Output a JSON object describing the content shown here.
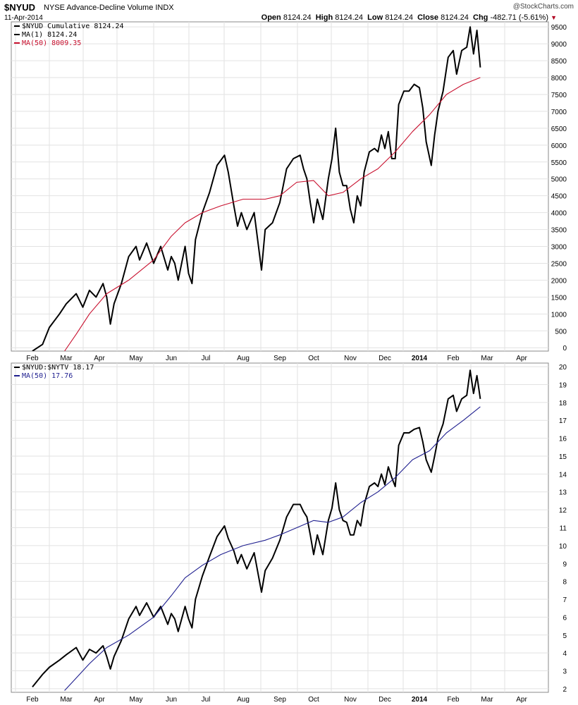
{
  "header": {
    "symbol": "$NYUD",
    "description": "NYSE Advance-Decline Volume INDX",
    "date": "11-Apr-2014",
    "credit": "@StockCharts.com",
    "open_label": "Open",
    "open": "8124.24",
    "high_label": "High",
    "high": "8124.24",
    "low_label": "Low",
    "low": "8124.24",
    "close_label": "Close",
    "close": "8124.24",
    "chg_label": "Chg",
    "chg": "-482.71 (-5.61%)",
    "chg_color": "#b00020"
  },
  "chart_data": [
    {
      "type": "line",
      "panel": "top",
      "x_labels": [
        "Feb",
        "Mar",
        "Apr",
        "May",
        "Jun",
        "Jul",
        "Aug",
        "Sep",
        "Oct",
        "Nov",
        "Dec",
        "2014",
        "Feb",
        "Mar",
        "Apr"
      ],
      "ylim": [
        -100,
        9650
      ],
      "y_ticks": [
        0,
        500,
        1000,
        1500,
        2000,
        2500,
        3000,
        3500,
        4000,
        4500,
        5000,
        5500,
        6000,
        6500,
        7000,
        7500,
        8000,
        8500,
        9000,
        9500
      ],
      "legend": [
        {
          "text": "$NYUD Cumulative 8124.24",
          "color": "#000000"
        },
        {
          "text": "MA(1) 8124.24",
          "color": "#000000"
        },
        {
          "text": "MA(50) 8009.35",
          "color": "#c8102e"
        }
      ],
      "series": [
        {
          "color": "#000000",
          "points": [
            [
              0,
              -100
            ],
            [
              0.3,
              100
            ],
            [
              0.5,
              600
            ],
            [
              0.8,
              1000
            ],
            [
              1.0,
              1300
            ],
            [
              1.3,
              1600
            ],
            [
              1.5,
              1200
            ],
            [
              1.7,
              1700
            ],
            [
              1.9,
              1500
            ],
            [
              2.1,
              1900
            ],
            [
              2.2,
              1500
            ],
            [
              2.3,
              700
            ],
            [
              2.4,
              1300
            ],
            [
              2.6,
              1900
            ],
            [
              2.8,
              2700
            ],
            [
              3.0,
              3000
            ],
            [
              3.1,
              2600
            ],
            [
              3.3,
              3100
            ],
            [
              3.5,
              2500
            ],
            [
              3.7,
              3000
            ],
            [
              3.9,
              2300
            ],
            [
              4.0,
              2700
            ],
            [
              4.1,
              2500
            ],
            [
              4.2,
              2000
            ],
            [
              4.4,
              3000
            ],
            [
              4.5,
              2200
            ],
            [
              4.6,
              1900
            ],
            [
              4.7,
              3200
            ],
            [
              4.9,
              4000
            ],
            [
              5.1,
              4600
            ],
            [
              5.3,
              5400
            ],
            [
              5.5,
              5700
            ],
            [
              5.6,
              5200
            ],
            [
              5.75,
              4200
            ],
            [
              5.85,
              3600
            ],
            [
              5.95,
              4000
            ],
            [
              6.1,
              3500
            ],
            [
              6.3,
              4000
            ],
            [
              6.5,
              2300
            ],
            [
              6.6,
              3500
            ],
            [
              6.8,
              3700
            ],
            [
              7.0,
              4300
            ],
            [
              7.2,
              5300
            ],
            [
              7.4,
              5600
            ],
            [
              7.6,
              5700
            ],
            [
              7.7,
              5300
            ],
            [
              7.8,
              5000
            ],
            [
              7.9,
              4300
            ],
            [
              8.0,
              3700
            ],
            [
              8.1,
              4400
            ],
            [
              8.25,
              3800
            ],
            [
              8.4,
              5000
            ],
            [
              8.5,
              5600
            ],
            [
              8.6,
              6500
            ],
            [
              8.7,
              5200
            ],
            [
              8.8,
              4800
            ],
            [
              8.9,
              4800
            ],
            [
              9.0,
              4100
            ],
            [
              9.1,
              3700
            ],
            [
              9.2,
              4500
            ],
            [
              9.3,
              4200
            ],
            [
              9.4,
              5200
            ],
            [
              9.55,
              5800
            ],
            [
              9.7,
              5900
            ],
            [
              9.8,
              5800
            ],
            [
              9.9,
              6300
            ],
            [
              10.0,
              5900
            ],
            [
              10.1,
              6400
            ],
            [
              10.2,
              5600
            ],
            [
              10.3,
              5600
            ],
            [
              10.4,
              7200
            ],
            [
              10.55,
              7600
            ],
            [
              10.7,
              7600
            ],
            [
              10.85,
              7800
            ],
            [
              11.0,
              7700
            ],
            [
              11.1,
              7100
            ],
            [
              11.2,
              6100
            ],
            [
              11.35,
              5400
            ],
            [
              11.45,
              6300
            ],
            [
              11.55,
              7000
            ],
            [
              11.7,
              7600
            ],
            [
              11.85,
              8600
            ],
            [
              12.0,
              8800
            ],
            [
              12.1,
              8100
            ],
            [
              12.25,
              8800
            ],
            [
              12.4,
              8900
            ],
            [
              12.5,
              9500
            ],
            [
              12.6,
              8700
            ],
            [
              12.7,
              9400
            ],
            [
              12.8,
              8300
            ]
          ]
        },
        {
          "color": "#c8102e",
          "points": [
            [
              0.95,
              -100
            ],
            [
              1.3,
              400
            ],
            [
              1.7,
              1000
            ],
            [
              2.2,
              1600
            ],
            [
              2.8,
              2000
            ],
            [
              3.5,
              2600
            ],
            [
              4.0,
              3300
            ],
            [
              4.4,
              3700
            ],
            [
              4.9,
              4000
            ],
            [
              5.4,
              4200
            ],
            [
              6.0,
              4400
            ],
            [
              6.6,
              4400
            ],
            [
              7.0,
              4500
            ],
            [
              7.5,
              4900
            ],
            [
              8.0,
              4950
            ],
            [
              8.4,
              4500
            ],
            [
              8.8,
              4600
            ],
            [
              9.3,
              5000
            ],
            [
              9.8,
              5300
            ],
            [
              10.3,
              5800
            ],
            [
              10.8,
              6400
            ],
            [
              11.3,
              6900
            ],
            [
              11.8,
              7500
            ],
            [
              12.3,
              7800
            ],
            [
              12.8,
              8000
            ]
          ]
        }
      ]
    },
    {
      "type": "line",
      "panel": "bottom",
      "x_labels": [
        "Feb",
        "Mar",
        "Apr",
        "May",
        "Jun",
        "Jul",
        "Aug",
        "Sep",
        "Oct",
        "Nov",
        "Dec",
        "2014",
        "Feb",
        "Mar",
        "Apr"
      ],
      "ylim": [
        1.8,
        20.2
      ],
      "y_ticks": [
        2,
        3,
        4,
        5,
        6,
        7,
        8,
        9,
        10,
        11,
        12,
        13,
        14,
        15,
        16,
        17,
        18,
        19,
        20
      ],
      "legend": [
        {
          "text": "$NYUD:$NYTV 18.17",
          "color": "#000000"
        },
        {
          "text": "MA(50) 17.76",
          "color": "#1f1f8f"
        }
      ],
      "series": [
        {
          "color": "#000000",
          "points": [
            [
              0,
              2.1
            ],
            [
              0.3,
              2.8
            ],
            [
              0.5,
              3.2
            ],
            [
              0.8,
              3.6
            ],
            [
              1.0,
              3.9
            ],
            [
              1.3,
              4.3
            ],
            [
              1.5,
              3.6
            ],
            [
              1.7,
              4.2
            ],
            [
              1.9,
              4.0
            ],
            [
              2.1,
              4.4
            ],
            [
              2.2,
              3.8
            ],
            [
              2.3,
              3.1
            ],
            [
              2.4,
              3.8
            ],
            [
              2.6,
              4.7
            ],
            [
              2.8,
              5.9
            ],
            [
              3.0,
              6.6
            ],
            [
              3.1,
              6.1
            ],
            [
              3.3,
              6.8
            ],
            [
              3.5,
              6.0
            ],
            [
              3.7,
              6.6
            ],
            [
              3.9,
              5.6
            ],
            [
              4.0,
              6.2
            ],
            [
              4.1,
              5.9
            ],
            [
              4.2,
              5.2
            ],
            [
              4.4,
              6.6
            ],
            [
              4.5,
              5.9
            ],
            [
              4.6,
              5.4
            ],
            [
              4.7,
              7.0
            ],
            [
              4.9,
              8.3
            ],
            [
              5.1,
              9.4
            ],
            [
              5.3,
              10.5
            ],
            [
              5.5,
              11.1
            ],
            [
              5.6,
              10.4
            ],
            [
              5.75,
              9.7
            ],
            [
              5.85,
              9.0
            ],
            [
              5.95,
              9.5
            ],
            [
              6.1,
              8.7
            ],
            [
              6.3,
              9.6
            ],
            [
              6.5,
              7.4
            ],
            [
              6.6,
              8.6
            ],
            [
              6.8,
              9.3
            ],
            [
              7.0,
              10.3
            ],
            [
              7.2,
              11.6
            ],
            [
              7.4,
              12.3
            ],
            [
              7.6,
              12.3
            ],
            [
              7.7,
              11.9
            ],
            [
              7.8,
              11.6
            ],
            [
              7.9,
              10.6
            ],
            [
              8.0,
              9.5
            ],
            [
              8.1,
              10.6
            ],
            [
              8.25,
              9.5
            ],
            [
              8.4,
              11.4
            ],
            [
              8.5,
              12.1
            ],
            [
              8.6,
              13.5
            ],
            [
              8.7,
              12.0
            ],
            [
              8.8,
              11.4
            ],
            [
              8.9,
              11.3
            ],
            [
              9.0,
              10.6
            ],
            [
              9.1,
              10.6
            ],
            [
              9.2,
              11.4
            ],
            [
              9.3,
              11.1
            ],
            [
              9.4,
              12.3
            ],
            [
              9.55,
              13.3
            ],
            [
              9.7,
              13.5
            ],
            [
              9.8,
              13.3
            ],
            [
              9.9,
              14.0
            ],
            [
              10.0,
              13.4
            ],
            [
              10.1,
              14.4
            ],
            [
              10.2,
              13.8
            ],
            [
              10.3,
              13.3
            ],
            [
              10.4,
              15.6
            ],
            [
              10.55,
              16.3
            ],
            [
              10.7,
              16.3
            ],
            [
              10.85,
              16.5
            ],
            [
              11.0,
              16.6
            ],
            [
              11.1,
              15.8
            ],
            [
              11.2,
              14.8
            ],
            [
              11.35,
              14.1
            ],
            [
              11.45,
              15.0
            ],
            [
              11.55,
              16.0
            ],
            [
              11.7,
              16.8
            ],
            [
              11.85,
              18.2
            ],
            [
              12.0,
              18.4
            ],
            [
              12.1,
              17.5
            ],
            [
              12.25,
              18.2
            ],
            [
              12.4,
              18.4
            ],
            [
              12.5,
              19.8
            ],
            [
              12.6,
              18.5
            ],
            [
              12.7,
              19.5
            ],
            [
              12.8,
              18.2
            ]
          ]
        },
        {
          "color": "#1f1f8f",
          "points": [
            [
              0.95,
              1.9
            ],
            [
              1.3,
              2.6
            ],
            [
              1.7,
              3.4
            ],
            [
              2.2,
              4.3
            ],
            [
              2.8,
              5.0
            ],
            [
              3.5,
              6.0
            ],
            [
              4.0,
              7.2
            ],
            [
              4.4,
              8.2
            ],
            [
              4.9,
              8.9
            ],
            [
              5.4,
              9.5
            ],
            [
              6.0,
              10.0
            ],
            [
              6.6,
              10.3
            ],
            [
              7.0,
              10.6
            ],
            [
              7.5,
              11.0
            ],
            [
              8.0,
              11.4
            ],
            [
              8.4,
              11.3
            ],
            [
              8.8,
              11.6
            ],
            [
              9.3,
              12.4
            ],
            [
              9.8,
              13.0
            ],
            [
              10.3,
              13.8
            ],
            [
              10.8,
              14.8
            ],
            [
              11.3,
              15.3
            ],
            [
              11.8,
              16.3
            ],
            [
              12.3,
              17.0
            ],
            [
              12.8,
              17.76
            ]
          ]
        }
      ]
    }
  ]
}
